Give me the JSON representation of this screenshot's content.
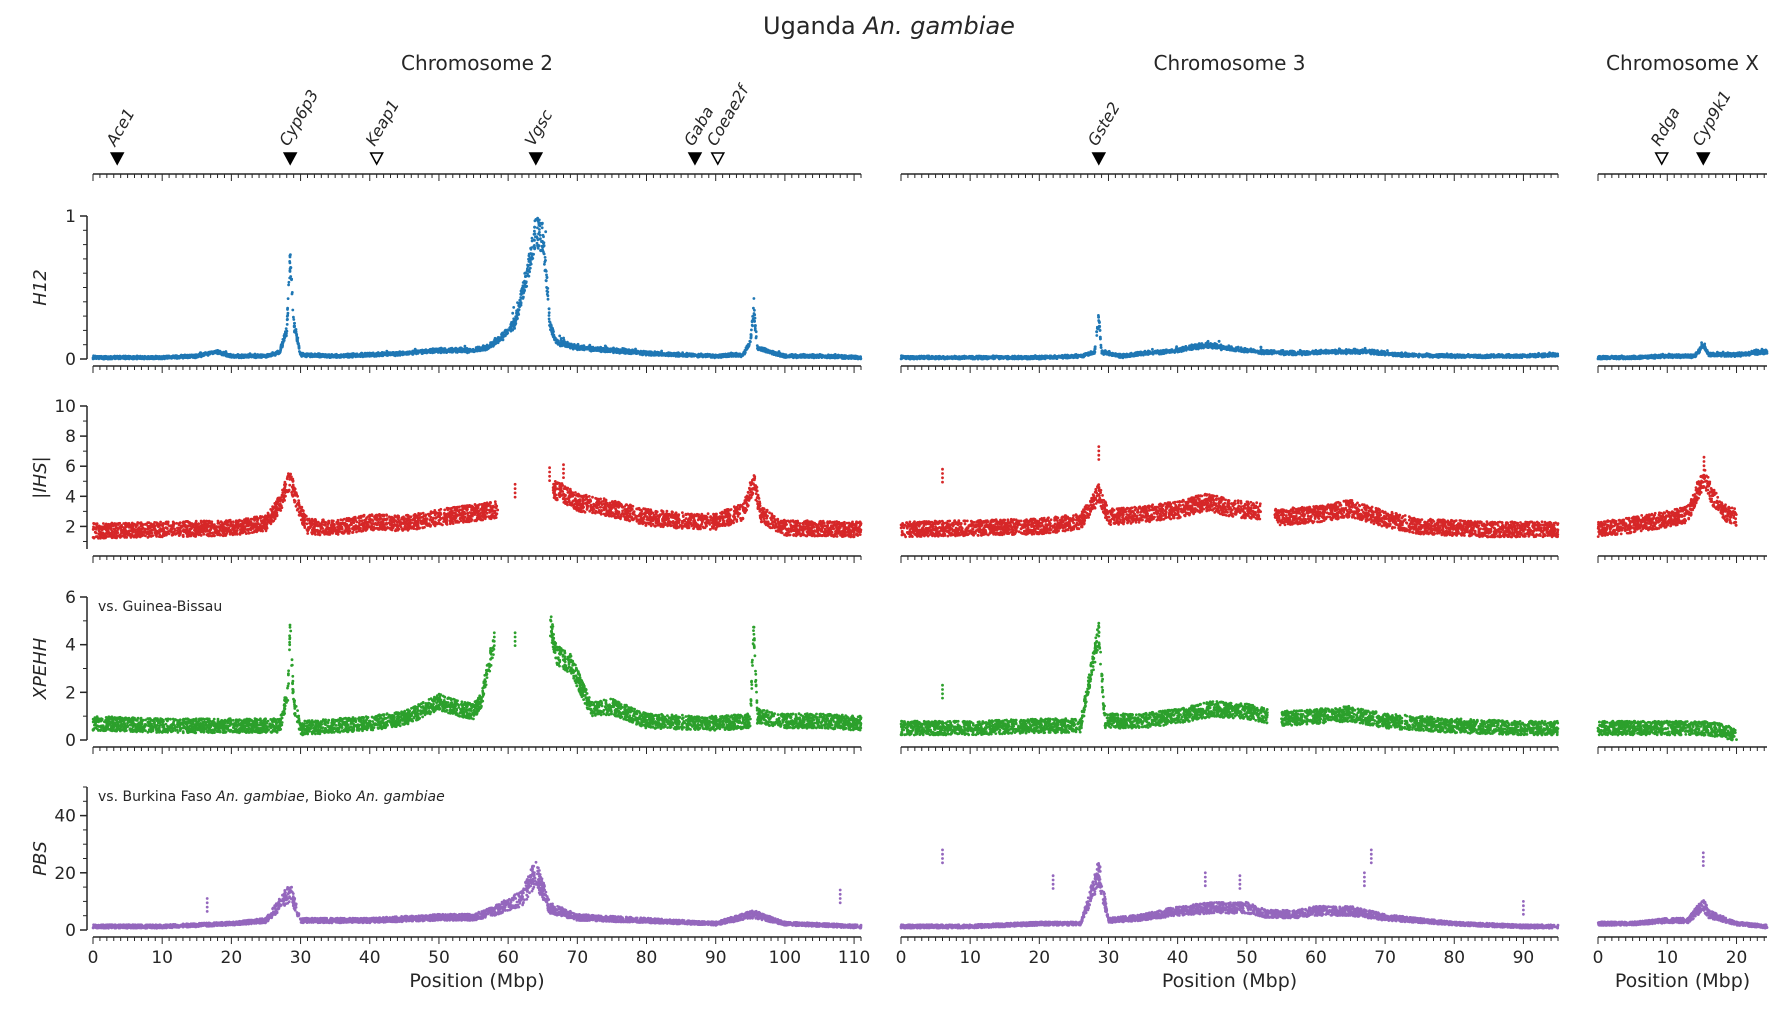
{
  "title": {
    "prefix": "Uganda ",
    "species": "An. gambiae"
  },
  "chromosomes": [
    {
      "id": "2",
      "label": "Chromosome 2",
      "length": 111,
      "xticks": [
        0,
        10,
        20,
        30,
        40,
        50,
        60,
        70,
        80,
        90,
        100,
        110
      ]
    },
    {
      "id": "3",
      "label": "Chromosome 3",
      "length": 95,
      "xticks": [
        0,
        10,
        20,
        30,
        40,
        50,
        60,
        70,
        80,
        90
      ]
    },
    {
      "id": "X",
      "label": "Chromosome X",
      "length": 24.4,
      "xticks": [
        0,
        10,
        20
      ]
    }
  ],
  "xlabel": "Position (Mbp)",
  "genes": [
    {
      "name": "Ace1",
      "chrom": "2",
      "pos": 3.5,
      "filled": true
    },
    {
      "name": "Cyp6p3",
      "chrom": "2",
      "pos": 28.5,
      "filled": true
    },
    {
      "name": "Keap1",
      "chrom": "2",
      "pos": 41.0,
      "filled": false
    },
    {
      "name": "Vgsc",
      "chrom": "2",
      "pos": 64.0,
      "filled": true
    },
    {
      "name": "Gaba",
      "chrom": "2",
      "pos": 87.0,
      "filled": true
    },
    {
      "name": "Coeae2f",
      "chrom": "2",
      "pos": 90.3,
      "filled": false
    },
    {
      "name": "Gste2",
      "chrom": "3",
      "pos": 28.6,
      "filled": true
    },
    {
      "name": "Rdga",
      "chrom": "X",
      "pos": 9.2,
      "filled": false
    },
    {
      "name": "Cyp9k1",
      "chrom": "X",
      "pos": 15.2,
      "filled": true
    }
  ],
  "chart_data": [
    {
      "type": "scatter",
      "ylabel": "H12",
      "color": "#1f77b4",
      "ylim": [
        0,
        1
      ],
      "yticks": [
        0,
        1
      ],
      "series": {
        "2": [
          [
            0,
            0.01
          ],
          [
            5,
            0.01
          ],
          [
            10,
            0.01
          ],
          [
            15,
            0.02
          ],
          [
            18,
            0.05
          ],
          [
            20,
            0.02
          ],
          [
            25,
            0.02
          ],
          [
            27,
            0.05
          ],
          [
            28,
            0.2
          ],
          [
            28.5,
            0.68
          ],
          [
            29,
            0.25
          ],
          [
            30,
            0.03
          ],
          [
            35,
            0.02
          ],
          [
            40,
            0.03
          ],
          [
            45,
            0.04
          ],
          [
            50,
            0.06
          ],
          [
            55,
            0.06
          ],
          [
            57,
            0.08
          ],
          [
            59,
            0.15
          ],
          [
            61,
            0.25
          ],
          [
            62,
            0.45
          ],
          [
            63,
            0.65
          ],
          [
            64,
            0.9
          ],
          [
            65,
            0.85
          ],
          [
            65.5,
            0.6
          ],
          [
            66,
            0.25
          ],
          [
            67,
            0.12
          ],
          [
            70,
            0.08
          ],
          [
            75,
            0.06
          ],
          [
            80,
            0.04
          ],
          [
            85,
            0.03
          ],
          [
            90,
            0.02
          ],
          [
            94,
            0.03
          ],
          [
            95,
            0.12
          ],
          [
            95.5,
            0.35
          ],
          [
            96,
            0.08
          ],
          [
            100,
            0.02
          ],
          [
            105,
            0.02
          ],
          [
            111,
            0.01
          ]
        ],
        "3": [
          [
            0,
            0.01
          ],
          [
            10,
            0.01
          ],
          [
            20,
            0.01
          ],
          [
            26,
            0.02
          ],
          [
            28,
            0.05
          ],
          [
            28.6,
            0.3
          ],
          [
            29,
            0.05
          ],
          [
            32,
            0.02
          ],
          [
            35,
            0.04
          ],
          [
            40,
            0.06
          ],
          [
            44,
            0.1
          ],
          [
            48,
            0.07
          ],
          [
            52,
            0.05
          ],
          [
            58,
            0.04
          ],
          [
            62,
            0.05
          ],
          [
            68,
            0.05
          ],
          [
            72,
            0.03
          ],
          [
            80,
            0.02
          ],
          [
            90,
            0.02
          ],
          [
            95,
            0.03
          ]
        ],
        "X": [
          [
            0,
            0.01
          ],
          [
            5,
            0.01
          ],
          [
            10,
            0.02
          ],
          [
            14,
            0.02
          ],
          [
            15.2,
            0.1
          ],
          [
            16,
            0.03
          ],
          [
            20,
            0.03
          ],
          [
            24.4,
            0.05
          ]
        ]
      }
    },
    {
      "type": "scatter",
      "ylabel": "|IHS|",
      "color": "#d62728",
      "ylim": [
        0.5,
        10
      ],
      "yticks": [
        2,
        4,
        6,
        8,
        10
      ],
      "gaps": {
        "2": [
          [
            58.5,
            66.5
          ]
        ],
        "3": [
          [
            52,
            54
          ]
        ],
        "X": [
          [
            20,
            24.4
          ]
        ]
      },
      "series": {
        "2": [
          [
            0,
            1.7
          ],
          [
            10,
            1.8
          ],
          [
            20,
            1.9
          ],
          [
            25,
            2.2
          ],
          [
            27,
            3.5
          ],
          [
            28.5,
            5.2
          ],
          [
            29.5,
            3.5
          ],
          [
            31,
            2.0
          ],
          [
            35,
            1.9
          ],
          [
            40,
            2.3
          ],
          [
            45,
            2.2
          ],
          [
            50,
            2.6
          ],
          [
            55,
            2.9
          ],
          [
            58,
            3.1
          ],
          [
            66.5,
            4.5
          ],
          [
            68,
            4.2
          ],
          [
            70,
            3.6
          ],
          [
            75,
            3.2
          ],
          [
            80,
            2.6
          ],
          [
            85,
            2.4
          ],
          [
            90,
            2.3
          ],
          [
            94,
            3.0
          ],
          [
            95.5,
            5.0
          ],
          [
            96.5,
            2.8
          ],
          [
            100,
            1.9
          ],
          [
            111,
            1.8
          ]
        ],
        "3": [
          [
            0,
            1.8
          ],
          [
            10,
            1.9
          ],
          [
            20,
            2.0
          ],
          [
            26,
            2.3
          ],
          [
            28.6,
            4.2
          ],
          [
            30,
            2.6
          ],
          [
            35,
            2.8
          ],
          [
            40,
            3.1
          ],
          [
            44,
            3.6
          ],
          [
            48,
            3.2
          ],
          [
            52,
            3.0
          ],
          [
            54,
            2.6
          ],
          [
            60,
            2.8
          ],
          [
            65,
            3.2
          ],
          [
            70,
            2.5
          ],
          [
            75,
            2.0
          ],
          [
            85,
            1.8
          ],
          [
            95,
            1.8
          ]
        ],
        "X": [
          [
            0,
            1.8
          ],
          [
            5,
            2.1
          ],
          [
            10,
            2.5
          ],
          [
            13,
            2.8
          ],
          [
            14.5,
            4.5
          ],
          [
            15.5,
            5.2
          ],
          [
            16.5,
            4.0
          ],
          [
            18,
            3.0
          ],
          [
            20,
            2.6
          ]
        ]
      },
      "outliers": {
        "2": [
          [
            61,
            4.8
          ],
          [
            66,
            5.9
          ],
          [
            68,
            6.1
          ]
        ],
        "3": [
          [
            6,
            5.8
          ],
          [
            28.6,
            7.3
          ]
        ],
        "X": [
          [
            15.3,
            6.6
          ]
        ]
      }
    },
    {
      "type": "scatter",
      "ylabel": "XPEHH",
      "annotation": "vs. Guinea-Bissau",
      "color": "#2ca02c",
      "ylim": [
        0,
        6
      ],
      "yticks": [
        0,
        2,
        4,
        6
      ],
      "gaps": {
        "2": [
          [
            58,
            66
          ]
        ],
        "3": [
          [
            53,
            55
          ]
        ],
        "X": [
          [
            20,
            24.4
          ]
        ]
      },
      "series": {
        "2": [
          [
            0,
            0.7
          ],
          [
            10,
            0.6
          ],
          [
            20,
            0.6
          ],
          [
            27,
            0.6
          ],
          [
            28.2,
            2.0
          ],
          [
            28.5,
            4.9
          ],
          [
            29,
            1.5
          ],
          [
            30,
            0.5
          ],
          [
            35,
            0.6
          ],
          [
            40,
            0.7
          ],
          [
            45,
            0.9
          ],
          [
            50,
            1.6
          ],
          [
            53,
            1.3
          ],
          [
            55,
            1.2
          ],
          [
            56,
            1.6
          ],
          [
            57,
            2.8
          ],
          [
            58,
            4.2
          ],
          [
            66,
            5.0
          ],
          [
            67,
            3.6
          ],
          [
            69,
            3.2
          ],
          [
            70,
            2.6
          ],
          [
            72,
            1.3
          ],
          [
            75,
            1.4
          ],
          [
            80,
            0.8
          ],
          [
            90,
            0.7
          ],
          [
            95,
            0.8
          ],
          [
            95.5,
            4.7
          ],
          [
            96,
            1.0
          ],
          [
            100,
            0.8
          ],
          [
            105,
            0.8
          ],
          [
            111,
            0.7
          ]
        ],
        "3": [
          [
            0,
            0.5
          ],
          [
            10,
            0.5
          ],
          [
            20,
            0.6
          ],
          [
            26,
            0.6
          ],
          [
            28.6,
            4.5
          ],
          [
            29.5,
            0.8
          ],
          [
            35,
            0.8
          ],
          [
            40,
            1.0
          ],
          [
            45,
            1.3
          ],
          [
            50,
            1.2
          ],
          [
            53,
            1.0
          ],
          [
            55,
            0.9
          ],
          [
            60,
            1.0
          ],
          [
            65,
            1.1
          ],
          [
            70,
            0.8
          ],
          [
            80,
            0.6
          ],
          [
            90,
            0.5
          ],
          [
            95,
            0.5
          ]
        ],
        "X": [
          [
            0,
            0.5
          ],
          [
            5,
            0.5
          ],
          [
            10,
            0.5
          ],
          [
            15,
            0.5
          ],
          [
            18,
            0.4
          ],
          [
            20,
            0.2
          ]
        ]
      },
      "outliers": {
        "2": [
          [
            58,
            4.5
          ],
          [
            61,
            4.5
          ]
        ],
        "3": [
          [
            6,
            2.3
          ],
          [
            28.6,
            4.9
          ]
        ],
        "X": []
      }
    },
    {
      "type": "scatter",
      "ylabel": "PBS",
      "annotation": {
        "prefix": "vs. Burkina Faso ",
        "sp1": "An. gambiae",
        "mid": ", Bioko ",
        "sp2": "An. gambiae"
      },
      "color": "#9467bd",
      "ylim": [
        0,
        50
      ],
      "yticks": [
        0,
        20,
        40
      ],
      "series": {
        "2": [
          [
            0,
            1
          ],
          [
            10,
            1
          ],
          [
            20,
            2
          ],
          [
            25,
            3
          ],
          [
            28.5,
            12
          ],
          [
            30,
            3
          ],
          [
            40,
            3
          ],
          [
            50,
            4
          ],
          [
            55,
            4
          ],
          [
            58,
            6
          ],
          [
            62,
            10
          ],
          [
            64,
            18
          ],
          [
            66,
            7
          ],
          [
            70,
            4
          ],
          [
            80,
            3
          ],
          [
            90,
            2
          ],
          [
            95.5,
            5
          ],
          [
            100,
            2
          ],
          [
            111,
            1
          ]
        ],
        "3": [
          [
            0,
            1
          ],
          [
            10,
            1
          ],
          [
            20,
            2
          ],
          [
            26,
            2
          ],
          [
            28.6,
            18
          ],
          [
            30,
            3
          ],
          [
            35,
            4
          ],
          [
            40,
            6
          ],
          [
            45,
            7
          ],
          [
            50,
            7
          ],
          [
            53,
            5
          ],
          [
            57,
            5
          ],
          [
            60,
            6
          ],
          [
            65,
            6
          ],
          [
            70,
            4
          ],
          [
            80,
            2
          ],
          [
            90,
            1
          ],
          [
            95,
            1
          ]
        ],
        "X": [
          [
            0,
            2
          ],
          [
            5,
            2
          ],
          [
            10,
            3
          ],
          [
            13,
            3
          ],
          [
            15.2,
            8
          ],
          [
            16,
            5
          ],
          [
            20,
            2
          ],
          [
            24.4,
            1
          ]
        ]
      },
      "outliers": {
        "2": [
          [
            16.5,
            11
          ],
          [
            108,
            14
          ]
        ],
        "3": [
          [
            6,
            28
          ],
          [
            22,
            19
          ],
          [
            28.6,
            22
          ],
          [
            44,
            20
          ],
          [
            49,
            19
          ],
          [
            68,
            28
          ],
          [
            67,
            20
          ],
          [
            90,
            10
          ]
        ],
        "X": [
          [
            15.2,
            27
          ]
        ]
      }
    }
  ]
}
